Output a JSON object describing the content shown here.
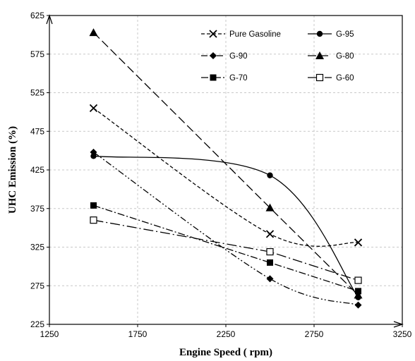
{
  "chart_data": {
    "type": "line",
    "title": "",
    "xlabel": "Engine Speed ( rpm)",
    "ylabel": "UHC Emission (%)",
    "xlim": [
      1250,
      3250
    ],
    "ylim": [
      225,
      625
    ],
    "xticks": [
      1250,
      1750,
      2250,
      2750,
      3250
    ],
    "yticks": [
      225,
      275,
      325,
      375,
      425,
      475,
      525,
      575,
      625
    ],
    "grid": true,
    "legend_position": "top-right",
    "x": [
      1500,
      2500,
      3000
    ],
    "series": [
      {
        "name": "Pure Gasoline",
        "values": [
          505,
          342,
          331
        ],
        "marker": "x",
        "dash": "5 3",
        "curve": "smooth"
      },
      {
        "name": "G-95",
        "values": [
          443,
          418,
          260
        ],
        "marker": "circle",
        "dash": "",
        "curve": "smooth"
      },
      {
        "name": "G-90",
        "values": [
          448,
          284,
          250
        ],
        "marker": "diamond",
        "dash": "9 3 2 3 2 3",
        "curve": "smooth"
      },
      {
        "name": "G-80",
        "values": [
          603,
          376,
          263
        ],
        "marker": "triangle",
        "dash": "12 5",
        "curve": "linear"
      },
      {
        "name": "G-70",
        "values": [
          379,
          305,
          268
        ],
        "marker": "square",
        "dash": "10 3 2 3",
        "curve": "linear"
      },
      {
        "name": "G-60",
        "values": [
          360,
          319,
          282
        ],
        "marker": "square-open",
        "dash": "14 4 2 4",
        "curve": "linear"
      }
    ]
  }
}
